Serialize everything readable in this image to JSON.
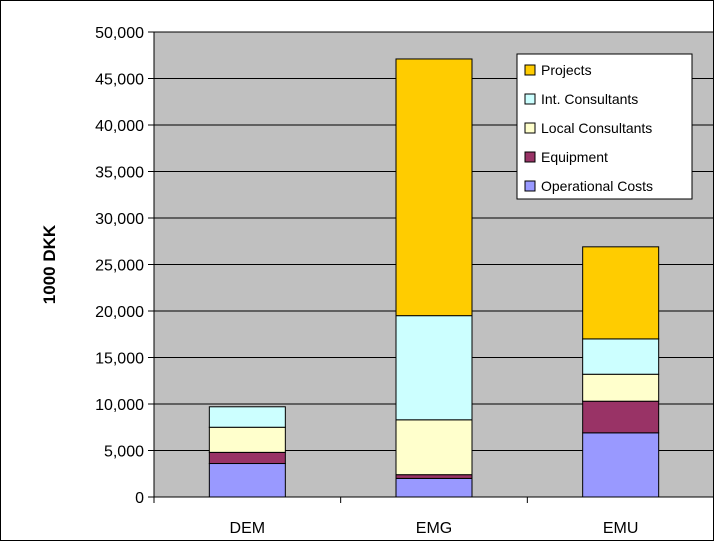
{
  "chart_data": {
    "type": "bar",
    "stacked": true,
    "title": "",
    "xlabel": "",
    "ylabel": "1000 DKK",
    "ylim": [
      0,
      50000
    ],
    "yticks": [
      0,
      5000,
      10000,
      15000,
      20000,
      25000,
      30000,
      35000,
      40000,
      45000,
      50000
    ],
    "ytick_labels": [
      "0",
      "5,000",
      "10,000",
      "15,000",
      "20,000",
      "25,000",
      "30,000",
      "35,000",
      "40,000",
      "45,000",
      "50,000"
    ],
    "categories": [
      "DEM",
      "EMG",
      "EMU"
    ],
    "grid": true,
    "legend_position": "top-right",
    "plot_background": "#c0c0c0",
    "series": [
      {
        "name": "Operational Costs",
        "color": "#9999ff",
        "values": [
          3600,
          2000,
          6900
        ]
      },
      {
        "name": "Equipment",
        "color": "#993366",
        "values": [
          1200,
          400,
          3400
        ]
      },
      {
        "name": "Local Consultants",
        "color": "#ffffcc",
        "values": [
          2700,
          5900,
          2900
        ]
      },
      {
        "name": "Int. Consultants",
        "color": "#ccffff",
        "values": [
          2200,
          11200,
          3800
        ]
      },
      {
        "name": "Projects",
        "color": "#ffcc00",
        "values": [
          0,
          27600,
          9900
        ]
      }
    ]
  }
}
